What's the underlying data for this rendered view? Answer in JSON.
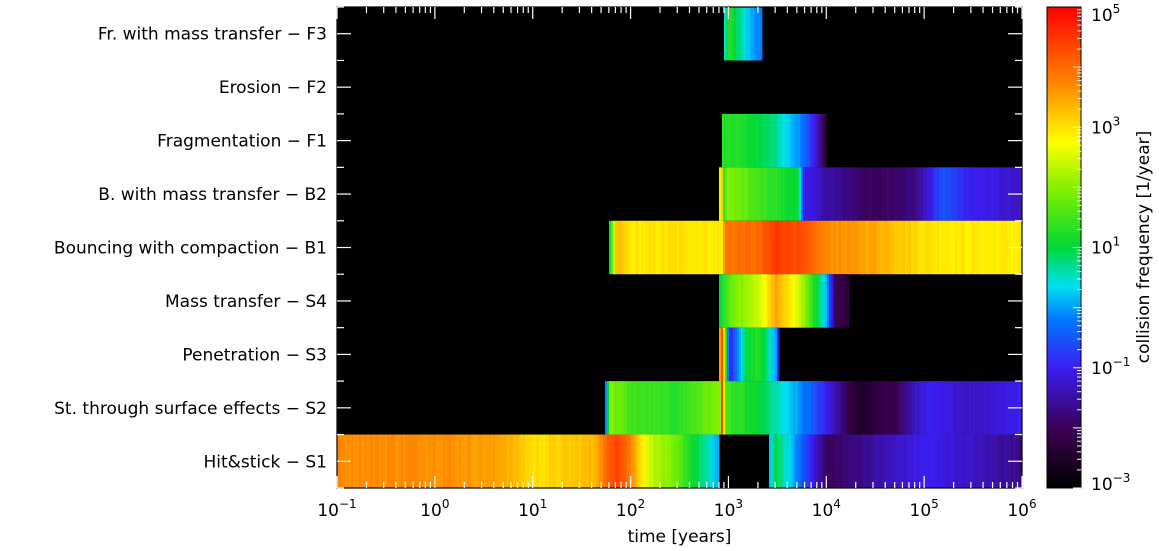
{
  "chart_data": {
    "type": "heatmap",
    "title": "",
    "xlabel": "time [years]",
    "ylabel": "",
    "xscale": "log",
    "xlim": [
      0.1,
      1000000
    ],
    "x_tick_labels": [
      {
        "base": "10",
        "exp": "−1",
        "value": 0.1
      },
      {
        "base": "10",
        "exp": "0",
        "value": 1
      },
      {
        "base": "10",
        "exp": "1",
        "value": 10
      },
      {
        "base": "10",
        "exp": "2",
        "value": 100
      },
      {
        "base": "10",
        "exp": "3",
        "value": 1000
      },
      {
        "base": "10",
        "exp": "4",
        "value": 10000
      },
      {
        "base": "10",
        "exp": "5",
        "value": 100000
      },
      {
        "base": "10",
        "exp": "6",
        "value": 1000000
      }
    ],
    "rows": [
      "Fr. with mass transfer − F3",
      "Erosion − F2",
      "Fragmentation − F1",
      "B. with mass transfer − B2",
      "Bouncing with compaction − B1",
      "Mass transfer − S4",
      "Penetration − S3",
      "St. through surface effects − S2",
      "Hit&stick − S1"
    ],
    "colorbar": {
      "label": "collision frequency [1/year]",
      "scale": "log",
      "range": [
        0.001,
        100000
      ],
      "tick_labels": [
        {
          "base": "10",
          "exp": "5",
          "value": 100000
        },
        {
          "base": "10",
          "exp": "3",
          "value": 1000
        },
        {
          "base": "10",
          "exp": "1",
          "value": 10
        },
        {
          "base": "10",
          "exp": "−1",
          "value": 0.1
        },
        {
          "base": "10",
          "exp": "−3",
          "value": 0.001
        }
      ]
    },
    "background_color": "#000000",
    "series": [
      {
        "row": "Fr. with mass transfer − F3",
        "x": [
          900,
          1000,
          1500,
          2200
        ],
        "values": [
          3,
          20,
          2,
          0.5
        ]
      },
      {
        "row": "Erosion − F2",
        "x": [],
        "values": []
      },
      {
        "row": "Fragmentation − F1",
        "x": [
          850,
          1500,
          3000,
          6000,
          8000,
          9000,
          10000
        ],
        "values": [
          20,
          15,
          5,
          0.5,
          0.05,
          0.01,
          0.005
        ]
      },
      {
        "row": "B. with mass transfer − B2",
        "x": [
          800,
          830,
          870,
          950,
          2000,
          5000,
          5800,
          10000,
          30000,
          80000,
          150000,
          300000,
          1000000
        ],
        "values": [
          300,
          5000,
          20,
          100,
          30,
          10,
          0.1,
          0.03,
          0.01,
          0.02,
          0.3,
          0.1,
          0.05
        ]
      },
      {
        "row": "Bouncing with compaction − B1",
        "x": [
          60,
          70,
          100,
          300,
          850,
          900,
          2000,
          3000,
          5000,
          10000,
          30000,
          100000,
          300000,
          1000000
        ],
        "values": [
          10,
          2000,
          800,
          1000,
          800,
          8000,
          10000,
          30000,
          20000,
          5000,
          3000,
          1000,
          800,
          800
        ]
      },
      {
        "row": "Mass transfer − S4",
        "x": [
          800,
          1000,
          2000,
          3000,
          4000,
          6000,
          10000,
          12000,
          17000
        ],
        "values": [
          10,
          50,
          300,
          3000,
          1000,
          100,
          1,
          0.01,
          0.005
        ]
      },
      {
        "row": "Penetration − S3",
        "x": [
          800,
          850,
          900,
          1000,
          1500,
          2000,
          3000,
          3300
        ],
        "values": [
          3000,
          30000,
          100,
          0.1,
          10,
          20,
          1,
          0.01
        ]
      },
      {
        "row": "St. through surface effects − S2",
        "x": [
          55,
          60,
          100,
          300,
          800,
          850,
          900,
          2000,
          5000,
          10000,
          20000,
          50000,
          100000,
          300000,
          1000000
        ],
        "values": [
          1,
          100,
          30,
          20,
          100,
          100000,
          30,
          10,
          1,
          0.1,
          0.003,
          0.01,
          0.1,
          0.05,
          0.1
        ]
      },
      {
        "row": "Hit&stick − S1",
        "x": [
          0.1,
          1,
          5,
          10,
          40,
          70,
          90,
          150,
          300,
          800,
          880,
          2500,
          3000,
          7000,
          10000,
          30000,
          100000,
          300000,
          1000000
        ],
        "values": [
          5000,
          5000,
          3000,
          1000,
          2000,
          30000,
          10000,
          300,
          50,
          1,
          "none",
          1,
          10,
          0.1,
          0.01,
          0.03,
          0.1,
          0.05,
          0.02
        ]
      }
    ]
  }
}
